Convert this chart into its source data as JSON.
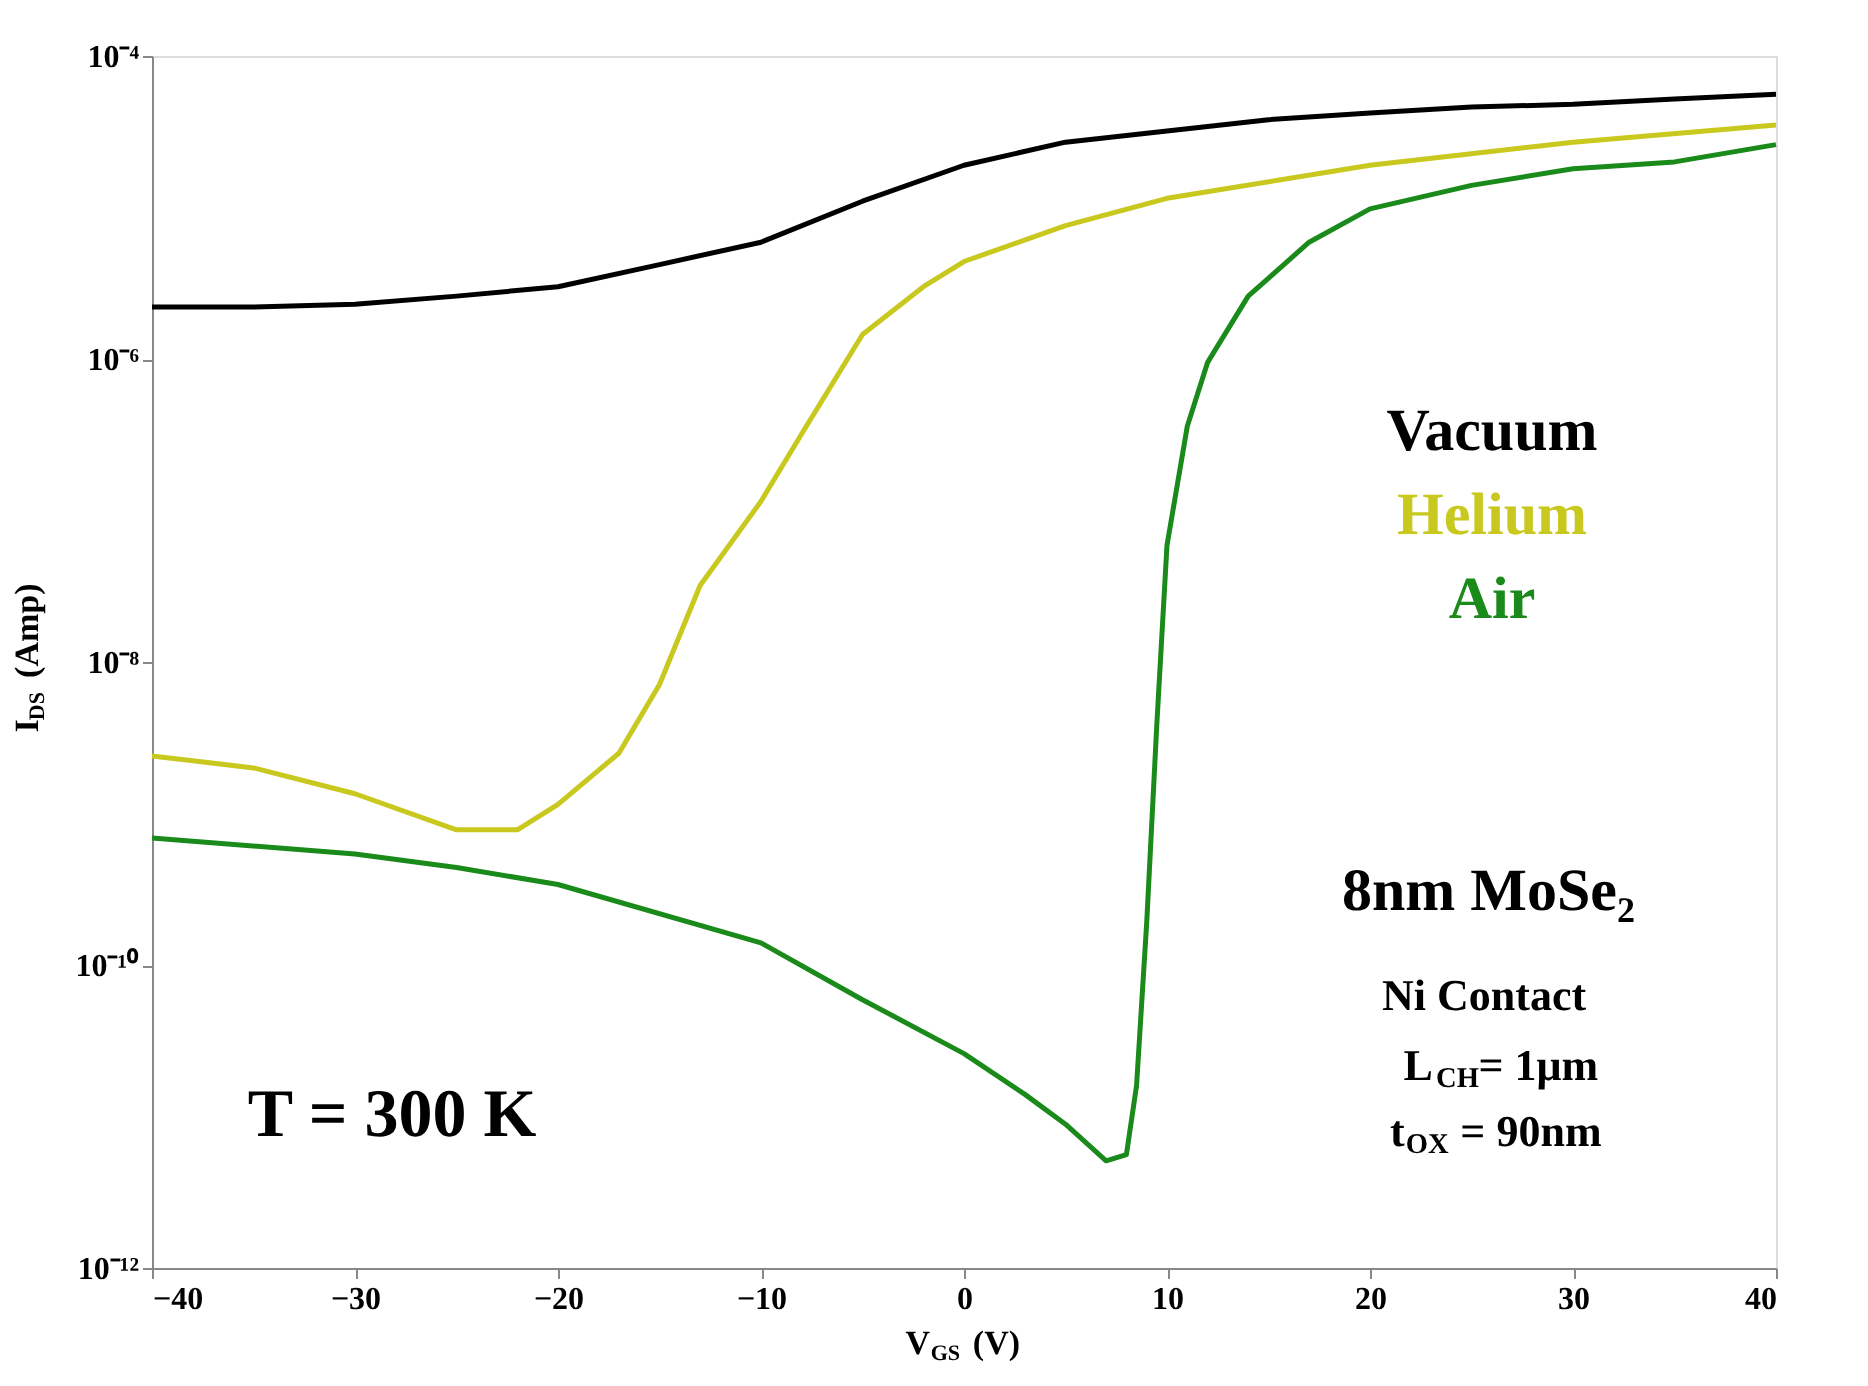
{
  "chart_data": {
    "type": "line",
    "xlabel": "V$_{GS}$ (V)",
    "ylabel": "I$_{DS}$ (Amp)",
    "log": "y",
    "grid": false,
    "legend": "right",
    "marker": "none",
    "line_style": "solid",
    "xlim": [
      -40,
      40
    ],
    "xticks": [
      -40,
      -30,
      -20,
      -10,
      0,
      10,
      20,
      30,
      40
    ],
    "ylim": [
      1e-12,
      0.0001
    ],
    "yticks": [
      {
        "value": 1e-12,
        "label": "10⁻¹²"
      },
      {
        "value": 1e-10,
        "label": "10⁻¹⁰"
      },
      {
        "value": 1e-08,
        "label": "10⁻⁸"
      },
      {
        "value": 1e-06,
        "label": "10⁻⁶"
      },
      {
        "value": 0.0001,
        "label": "10⁻⁴"
      }
    ],
    "series": [
      {
        "name": "Vacuum",
        "color": "#000000",
        "x": [
          -40,
          -35,
          -30,
          -25,
          -20,
          -15,
          -10,
          -5,
          0,
          5,
          10,
          15,
          20,
          25,
          30,
          35,
          40
        ],
        "values": [
          2.2e-06,
          2.2e-06,
          2.3e-06,
          2.6e-06,
          3e-06,
          4.2e-06,
          5.9e-06,
          1.1e-05,
          1.9e-05,
          2.7e-05,
          3.2e-05,
          3.8e-05,
          4.2e-05,
          4.6e-05,
          4.8e-05,
          5.2e-05,
          5.6e-05
        ]
      },
      {
        "name": "Helium",
        "color": "#c8c81e",
        "x": [
          -40,
          -35,
          -30,
          -25,
          -22,
          -20,
          -17,
          -15,
          -13,
          -10,
          -8,
          -5,
          -2,
          0,
          5,
          10,
          20,
          30,
          40
        ],
        "values": [
          2.4e-09,
          2e-09,
          1.35e-09,
          7.8e-10,
          7.8e-10,
          1.15e-09,
          2.5e-09,
          7.1e-09,
          3.2e-08,
          1.15e-07,
          3.2e-07,
          1.45e-06,
          3e-06,
          4.4e-06,
          7.6e-06,
          1.15e-05,
          1.9e-05,
          2.7e-05,
          3.5e-05
        ]
      },
      {
        "name": "Air",
        "color": "#1a8a1a",
        "x": [
          -40,
          -30,
          -25,
          -20,
          -10,
          -5,
          0,
          3,
          5,
          7,
          8,
          8.5,
          9,
          9.5,
          10,
          11,
          12,
          14,
          17,
          20,
          25,
          30,
          35,
          40
        ],
        "values": [
          6.9e-10,
          5.4e-10,
          4.4e-10,
          3.4e-10,
          1.4e-10,
          5.9e-11,
          2.6e-11,
          1.4e-11,
          8.9e-12,
          5.1e-12,
          5.6e-12,
          1.6e-11,
          1.9e-10,
          3.9e-09,
          5.9e-08,
          3.6e-07,
          9.5e-07,
          2.6e-06,
          5.9e-06,
          9.8e-06,
          1.4e-05,
          1.8e-05,
          2e-05,
          2.6e-05
        ]
      }
    ],
    "annotations": [
      "8nm MoSe₂",
      "Ni Contact",
      "L$_{CH}$= 1μm",
      "t$_{OX}$ = 90nm",
      "T = 300 K"
    ]
  }
}
